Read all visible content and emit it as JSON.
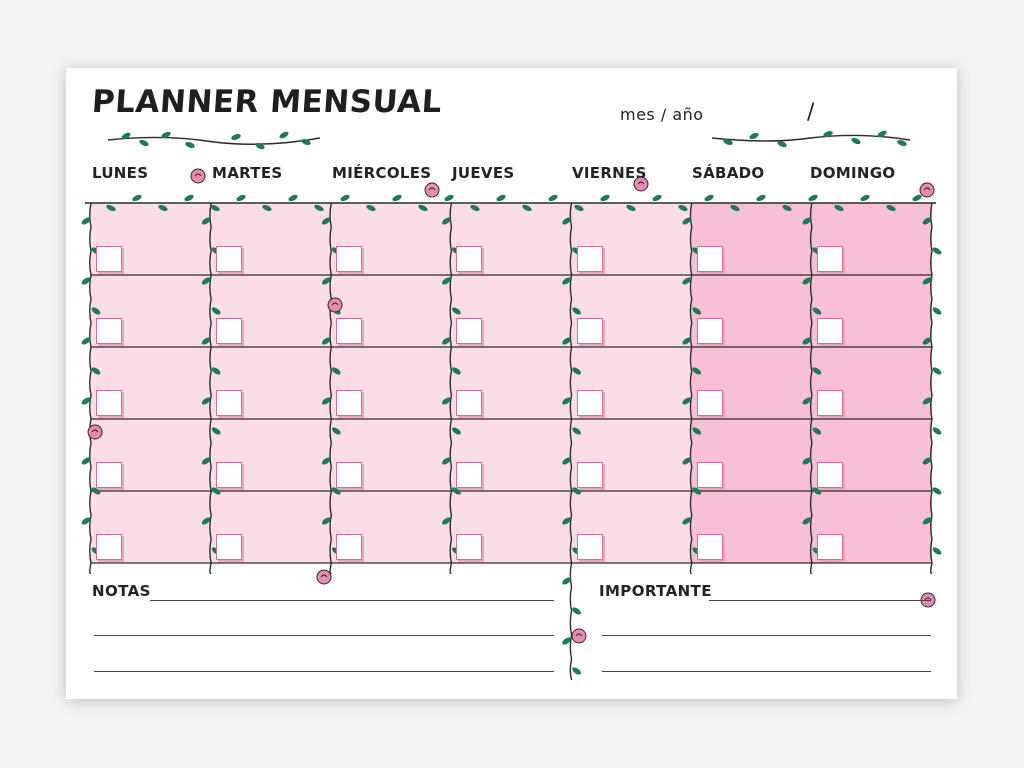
{
  "header": {
    "title": "Planner mensual",
    "month_year_label": "mes / año",
    "month_year_separator": "/"
  },
  "days": [
    {
      "label": "Lunes"
    },
    {
      "label": "Martes"
    },
    {
      "label": "Miércoles"
    },
    {
      "label": "Jueves"
    },
    {
      "label": "Viernes"
    },
    {
      "label": "Sábado"
    },
    {
      "label": "Domingo"
    }
  ],
  "calendar": {
    "weeks": 5,
    "weekday_color": "#fbdde8",
    "weekend_color": "#f7c0d6",
    "line_color": "#2b2b2b",
    "vine_leaf_color": "#1f7a5a",
    "rose_color": "#e58ab0"
  },
  "notes": {
    "label": "notas"
  },
  "important": {
    "label": "importante"
  }
}
